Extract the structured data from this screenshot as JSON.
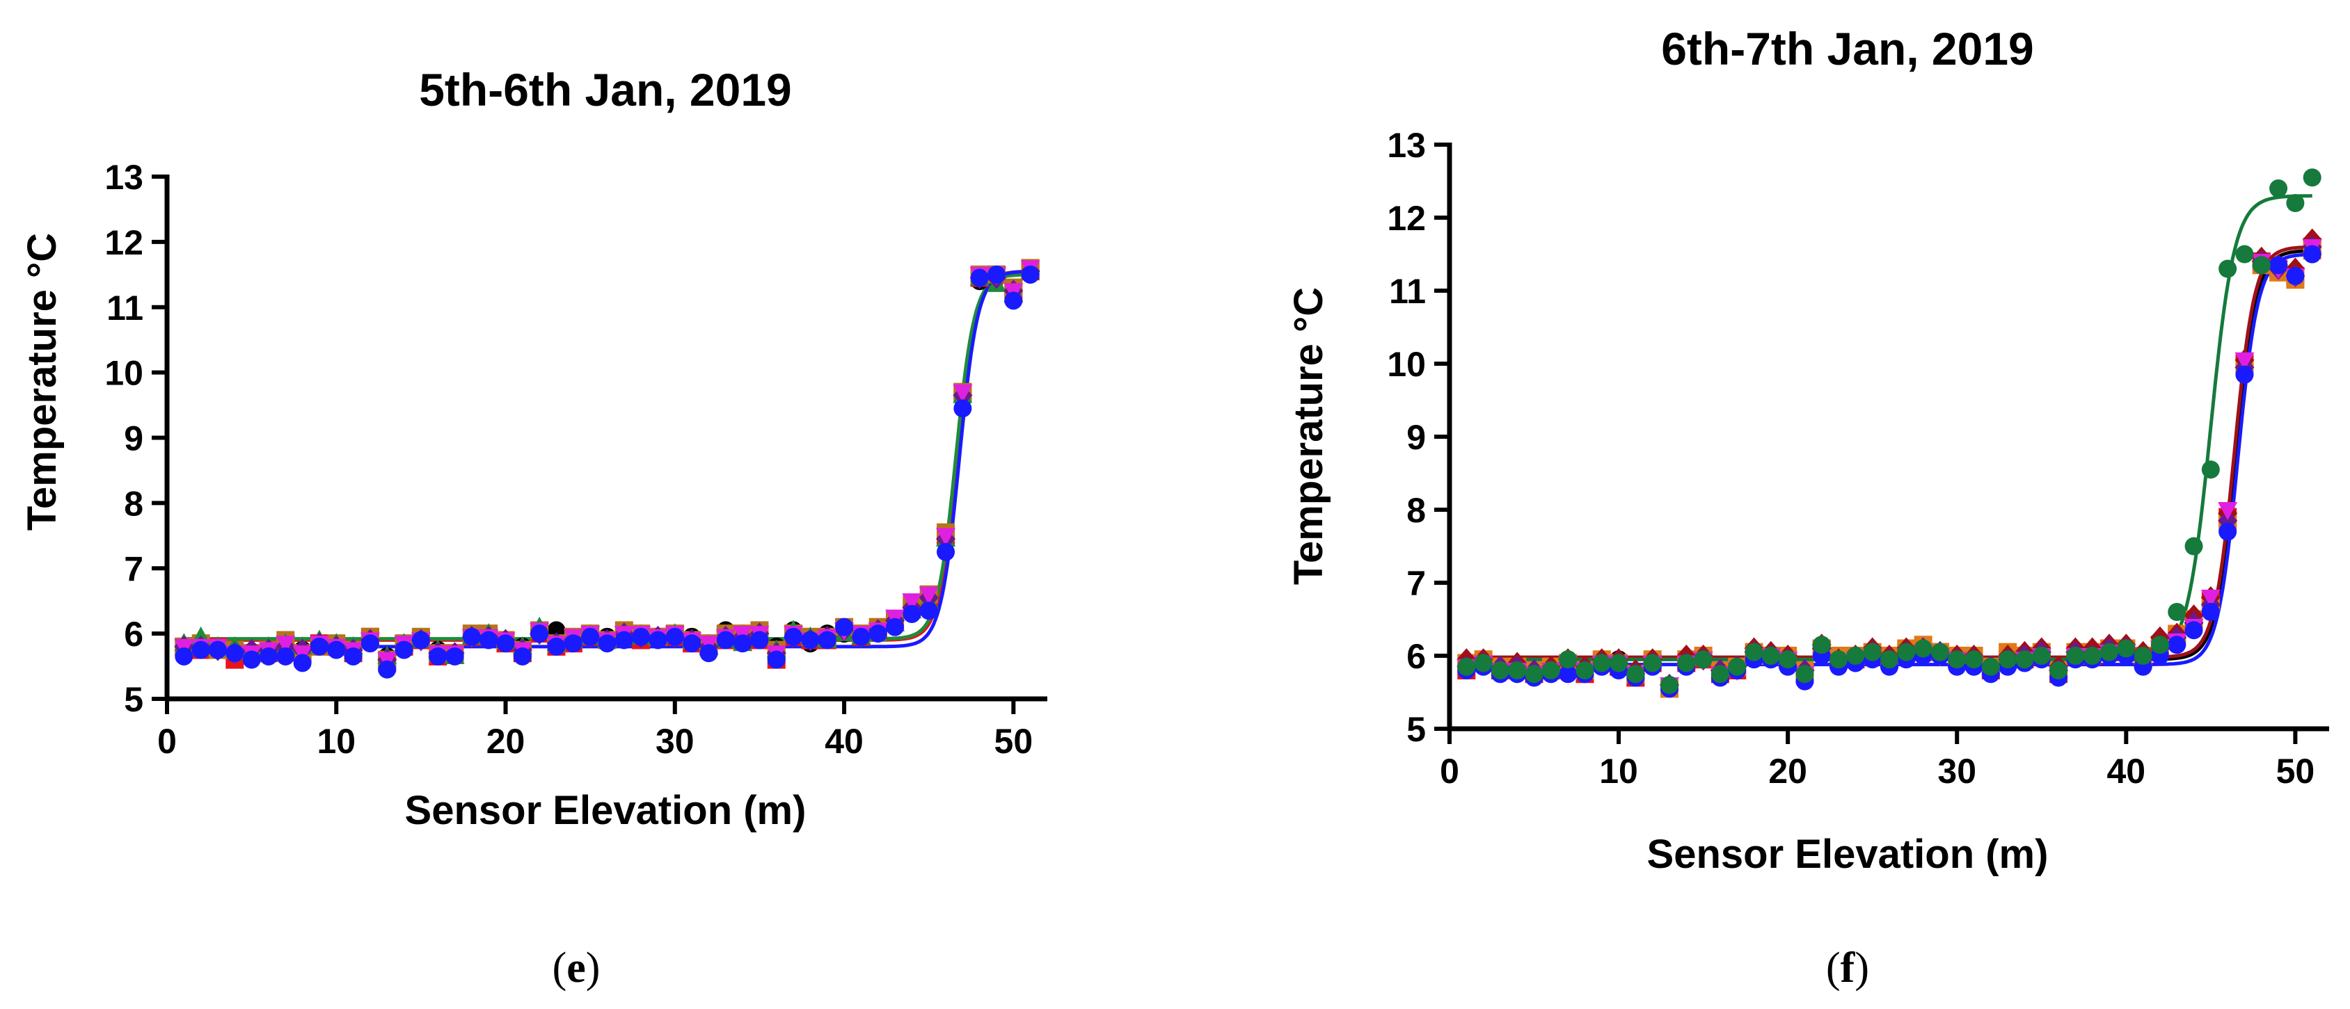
{
  "chart_data": [
    {
      "type": "scatter",
      "title": "5th-6th Jan, 2019",
      "xlabel": "Sensor Elevation (m)",
      "ylabel": "Temperature °C",
      "xlim": [
        0,
        52
      ],
      "ylim": [
        5,
        13
      ],
      "xticks": [
        0,
        10,
        20,
        30,
        40,
        50
      ],
      "yticks": [
        5,
        6,
        7,
        8,
        9,
        10,
        11,
        12,
        13
      ],
      "x": [
        1,
        2,
        3,
        4,
        5,
        6,
        7,
        8,
        9,
        10,
        11,
        12,
        13,
        14,
        15,
        16,
        17,
        18,
        19,
        20,
        21,
        22,
        23,
        24,
        25,
        26,
        27,
        28,
        29,
        30,
        31,
        32,
        33,
        34,
        35,
        36,
        37,
        38,
        39,
        40,
        41,
        42,
        43,
        44,
        45,
        46,
        47,
        48,
        49,
        50,
        51
      ],
      "series": [
        {
          "name": "black",
          "color": "#000000",
          "marker": "circle",
          "values": [
            5.8,
            5.85,
            5.8,
            5.75,
            5.7,
            5.75,
            5.85,
            5.75,
            5.85,
            5.8,
            5.75,
            5.9,
            5.65,
            5.85,
            5.95,
            5.75,
            5.7,
            5.95,
            5.95,
            5.9,
            5.8,
            6.05,
            6.05,
            5.95,
            6.0,
            5.95,
            6.0,
            6.0,
            5.95,
            6.0,
            5.95,
            5.85,
            6.05,
            6.0,
            5.95,
            5.8,
            6.05,
            5.85,
            6.0,
            6.0,
            5.95,
            6.05,
            6.2,
            6.4,
            6.55,
            7.4,
            9.6,
            11.4,
            11.45,
            11.2,
            11.5
          ]
        },
        {
          "name": "red",
          "color": "#e8141c",
          "marker": "square",
          "values": [
            5.8,
            5.75,
            5.8,
            5.6,
            5.7,
            5.7,
            5.8,
            5.7,
            5.85,
            5.8,
            5.7,
            5.95,
            5.55,
            5.8,
            5.9,
            5.65,
            5.7,
            5.95,
            5.95,
            5.85,
            5.7,
            6.0,
            5.8,
            5.85,
            5.95,
            5.9,
            5.95,
            5.9,
            5.95,
            5.95,
            5.85,
            5.8,
            5.9,
            5.95,
            5.9,
            5.6,
            5.95,
            5.9,
            5.9,
            6.05,
            5.95,
            6.05,
            6.2,
            6.4,
            6.5,
            7.5,
            9.7,
            11.45,
            11.5,
            11.2,
            11.55
          ]
        },
        {
          "name": "brown",
          "color": "#b8741a",
          "marker": "square",
          "values": [
            5.8,
            5.85,
            5.75,
            5.75,
            5.7,
            5.75,
            5.9,
            5.7,
            5.8,
            5.85,
            5.75,
            5.95,
            5.6,
            5.85,
            5.95,
            5.7,
            5.7,
            6.0,
            6.0,
            5.9,
            5.75,
            6.05,
            5.85,
            5.95,
            6.0,
            5.9,
            6.05,
            6.0,
            5.95,
            6.0,
            5.9,
            5.85,
            6.0,
            6.0,
            6.05,
            5.75,
            6.0,
            5.95,
            5.95,
            6.1,
            6.0,
            6.1,
            6.2,
            6.45,
            6.6,
            7.55,
            9.7,
            11.5,
            11.5,
            11.3,
            11.6
          ]
        },
        {
          "name": "green",
          "color": "#1e8c3a",
          "marker": "triangle",
          "values": [
            5.85,
            5.95,
            5.8,
            5.8,
            5.75,
            5.8,
            5.85,
            5.8,
            5.9,
            5.85,
            5.8,
            5.9,
            5.65,
            5.85,
            5.9,
            5.75,
            5.65,
            5.95,
            6.0,
            5.9,
            5.8,
            6.1,
            5.85,
            5.9,
            5.95,
            5.9,
            6.0,
            5.95,
            5.95,
            6.0,
            5.9,
            5.8,
            5.9,
            5.85,
            6.0,
            5.75,
            6.05,
            5.95,
            5.9,
            6.0,
            5.95,
            6.0,
            6.15,
            6.35,
            6.5,
            7.45,
            9.65,
            11.45,
            11.35,
            11.2,
            11.55
          ]
        },
        {
          "name": "purple",
          "color": "#6a1a8c",
          "marker": "diamond",
          "values": [
            5.8,
            5.8,
            5.75,
            5.7,
            5.75,
            5.75,
            5.8,
            5.75,
            5.85,
            5.8,
            5.75,
            5.9,
            5.6,
            5.8,
            5.9,
            5.7,
            5.7,
            5.95,
            5.95,
            5.9,
            5.75,
            6.0,
            5.85,
            5.9,
            5.95,
            5.9,
            6.0,
            5.95,
            5.95,
            5.95,
            5.9,
            5.8,
            5.95,
            5.95,
            6.0,
            5.7,
            5.95,
            5.9,
            5.95,
            6.05,
            5.95,
            6.05,
            6.2,
            6.4,
            6.55,
            7.45,
            9.65,
            11.45,
            11.45,
            11.25,
            11.55
          ]
        },
        {
          "name": "magenta",
          "color": "#e020e0",
          "marker": "triangle-down",
          "values": [
            5.8,
            5.8,
            5.8,
            5.7,
            5.7,
            5.75,
            5.85,
            5.7,
            5.85,
            5.8,
            5.75,
            5.9,
            5.6,
            5.85,
            5.9,
            5.7,
            5.7,
            5.95,
            5.95,
            5.9,
            5.75,
            6.05,
            5.85,
            5.95,
            6.0,
            5.9,
            6.0,
            6.0,
            5.95,
            6.0,
            5.9,
            5.85,
            5.95,
            6.0,
            6.0,
            5.7,
            6.0,
            5.9,
            5.95,
            6.05,
            6.0,
            6.05,
            6.25,
            6.5,
            6.6,
            7.5,
            9.7,
            11.5,
            11.5,
            11.25,
            11.6
          ]
        },
        {
          "name": "blue",
          "color": "#1a1aff",
          "marker": "circle",
          "values": [
            5.65,
            5.75,
            5.75,
            5.7,
            5.6,
            5.65,
            5.65,
            5.55,
            5.8,
            5.75,
            5.65,
            5.85,
            5.45,
            5.75,
            5.9,
            5.65,
            5.65,
            5.95,
            5.9,
            5.85,
            5.65,
            6.0,
            5.8,
            5.85,
            5.95,
            5.85,
            5.9,
            5.95,
            5.9,
            5.95,
            5.85,
            5.7,
            5.9,
            5.85,
            5.9,
            5.6,
            5.95,
            5.9,
            5.9,
            6.1,
            5.95,
            6.0,
            6.1,
            6.3,
            6.35,
            7.25,
            9.45,
            11.45,
            11.5,
            11.1,
            11.5
          ]
        }
      ],
      "fit_curves": [
        {
          "name": "red fit",
          "color": "#e8141c",
          "base": 5.9,
          "top": 11.55,
          "center": 46.7,
          "slope": 0.55
        },
        {
          "name": "green fit",
          "color": "#1e8c3a",
          "base": 5.92,
          "top": 11.5,
          "center": 46.6,
          "slope": 0.55
        },
        {
          "name": "blue fit",
          "color": "#1a1aff",
          "base": 5.8,
          "top": 11.55,
          "center": 46.8,
          "slope": 0.55
        }
      ],
      "panel_label": "e"
    },
    {
      "type": "scatter",
      "title": "6th-7th Jan, 2019",
      "xlabel": "Sensor Elevation (m)",
      "ylabel": "Temperature °C",
      "xlim": [
        0,
        52
      ],
      "ylim": [
        5,
        13
      ],
      "xticks": [
        0,
        10,
        20,
        30,
        40,
        50
      ],
      "yticks": [
        5,
        6,
        7,
        8,
        9,
        10,
        11,
        12,
        13
      ],
      "x": [
        1,
        2,
        3,
        4,
        5,
        6,
        7,
        8,
        9,
        10,
        11,
        12,
        13,
        14,
        15,
        16,
        17,
        18,
        19,
        20,
        21,
        22,
        23,
        24,
        25,
        26,
        27,
        28,
        29,
        30,
        31,
        32,
        33,
        34,
        35,
        36,
        37,
        38,
        39,
        40,
        41,
        42,
        43,
        44,
        45,
        46,
        47,
        48,
        49,
        50,
        51
      ],
      "series": [
        {
          "name": "black",
          "color": "#000000",
          "marker": "circle",
          "values": [
            5.9,
            5.9,
            5.85,
            5.85,
            5.8,
            5.85,
            5.95,
            5.8,
            5.9,
            5.95,
            5.75,
            5.9,
            5.6,
            5.95,
            5.95,
            5.8,
            5.85,
            6.05,
            6.0,
            5.95,
            5.75,
            6.1,
            5.95,
            6.0,
            6.05,
            5.95,
            6.05,
            6.1,
            6.05,
            5.95,
            5.95,
            5.85,
            5.95,
            5.95,
            6.05,
            5.8,
            6.05,
            6.05,
            6.1,
            6.1,
            5.95,
            6.1,
            6.25,
            6.45,
            6.7,
            7.85,
            9.9,
            11.35,
            11.25,
            11.2,
            11.5
          ]
        },
        {
          "name": "red",
          "color": "#e8141c",
          "marker": "square",
          "values": [
            5.8,
            5.9,
            5.8,
            5.8,
            5.75,
            5.8,
            5.9,
            5.75,
            5.9,
            5.85,
            5.7,
            5.9,
            5.55,
            5.9,
            5.95,
            5.75,
            5.8,
            6.0,
            6.0,
            5.95,
            5.75,
            6.1,
            5.95,
            5.95,
            6.0,
            5.95,
            6.05,
            6.05,
            6.05,
            5.95,
            5.95,
            5.8,
            5.95,
            5.95,
            6.0,
            5.75,
            6.0,
            6.0,
            6.05,
            6.1,
            5.95,
            6.15,
            6.25,
            6.5,
            6.75,
            7.9,
            10.0,
            11.4,
            11.3,
            11.2,
            11.6
          ]
        },
        {
          "name": "orange",
          "color": "#e07a18",
          "marker": "square",
          "values": [
            5.9,
            5.95,
            5.85,
            5.85,
            5.8,
            5.85,
            5.9,
            5.8,
            5.95,
            5.9,
            5.75,
            5.95,
            5.55,
            5.95,
            6.0,
            5.8,
            5.85,
            6.05,
            6.0,
            6.0,
            5.8,
            6.1,
            6.0,
            6.0,
            6.05,
            6.0,
            6.1,
            6.15,
            6.05,
            6.0,
            6.0,
            5.85,
            6.05,
            6.0,
            6.05,
            5.8,
            6.05,
            6.05,
            6.1,
            6.1,
            6.0,
            6.15,
            6.3,
            6.5,
            6.7,
            7.85,
            9.95,
            11.35,
            11.25,
            11.15,
            11.55
          ]
        },
        {
          "name": "dark-red",
          "color": "#a01018",
          "marker": "diamond",
          "values": [
            5.95,
            5.95,
            5.85,
            5.9,
            5.8,
            5.85,
            5.95,
            5.85,
            5.95,
            5.95,
            5.8,
            5.95,
            5.6,
            6.0,
            6.0,
            5.8,
            5.85,
            6.1,
            6.05,
            6.0,
            5.8,
            6.15,
            5.95,
            6.0,
            6.1,
            6.0,
            6.1,
            6.1,
            6.05,
            6.0,
            6.0,
            5.85,
            6.0,
            6.05,
            6.1,
            5.85,
            6.1,
            6.1,
            6.15,
            6.15,
            6.05,
            6.25,
            6.3,
            6.55,
            6.8,
            7.95,
            10.05,
            11.45,
            11.35,
            11.3,
            11.7
          ]
        },
        {
          "name": "purple",
          "color": "#6a1a8c",
          "marker": "diamond",
          "values": [
            5.85,
            5.9,
            5.85,
            5.85,
            5.8,
            5.8,
            5.9,
            5.8,
            5.9,
            5.9,
            5.75,
            5.9,
            5.6,
            5.9,
            5.95,
            5.8,
            5.85,
            6.05,
            6.0,
            5.95,
            5.8,
            6.1,
            5.9,
            5.95,
            6.05,
            5.95,
            6.05,
            6.1,
            6.05,
            5.95,
            5.95,
            5.85,
            5.95,
            6.0,
            6.05,
            5.8,
            6.05,
            6.0,
            6.1,
            6.1,
            5.95,
            6.1,
            6.25,
            6.45,
            6.7,
            7.85,
            9.95,
            11.4,
            11.3,
            11.2,
            11.6
          ]
        },
        {
          "name": "magenta",
          "color": "#e020e0",
          "marker": "triangle-down",
          "values": [
            5.85,
            5.9,
            5.8,
            5.8,
            5.75,
            5.8,
            5.9,
            5.8,
            5.9,
            5.9,
            5.75,
            5.9,
            5.6,
            5.9,
            5.95,
            5.75,
            5.8,
            6.0,
            6.0,
            5.95,
            5.75,
            6.05,
            5.9,
            5.95,
            6.0,
            5.9,
            6.0,
            6.05,
            6.0,
            5.95,
            5.9,
            5.8,
            5.9,
            5.95,
            6.0,
            5.75,
            6.0,
            6.0,
            6.05,
            6.05,
            5.95,
            6.1,
            6.2,
            6.4,
            6.8,
            8.0,
            10.05,
            11.4,
            11.3,
            11.2,
            11.6
          ]
        },
        {
          "name": "blue",
          "color": "#1a1aff",
          "marker": "circle",
          "values": [
            5.8,
            5.85,
            5.75,
            5.75,
            5.7,
            5.75,
            5.75,
            5.75,
            5.85,
            5.8,
            5.7,
            5.85,
            5.55,
            5.85,
            5.95,
            5.7,
            5.8,
            5.95,
            5.95,
            5.85,
            5.65,
            6.0,
            5.85,
            5.9,
            5.95,
            5.85,
            5.95,
            6.0,
            6.0,
            5.85,
            5.85,
            5.75,
            5.85,
            5.9,
            5.95,
            5.7,
            5.95,
            5.95,
            6.0,
            6.0,
            5.85,
            6.0,
            6.15,
            6.35,
            6.6,
            7.7,
            9.85,
            11.35,
            11.35,
            11.2,
            11.5
          ]
        },
        {
          "name": "green",
          "color": "#157a3c",
          "marker": "circle",
          "values": [
            5.85,
            5.9,
            5.8,
            5.8,
            5.75,
            5.8,
            5.95,
            5.8,
            5.9,
            5.9,
            5.75,
            5.9,
            5.6,
            5.9,
            5.95,
            5.75,
            5.85,
            6.05,
            6.0,
            5.95,
            5.75,
            6.15,
            5.95,
            6.0,
            6.05,
            5.95,
            6.05,
            6.1,
            6.05,
            5.95,
            5.95,
            5.85,
            5.95,
            5.95,
            6.0,
            5.8,
            6.0,
            6.0,
            6.05,
            6.1,
            6.0,
            6.15,
            6.6,
            7.5,
            8.55,
            11.3,
            11.5,
            11.35,
            12.4,
            12.2,
            12.55
          ]
        }
      ],
      "fit_curves": [
        {
          "name": "black fit",
          "color": "#000000",
          "base": 5.95,
          "top": 11.55,
          "center": 46.5,
          "slope": 0.6
        },
        {
          "name": "dark-red fit",
          "color": "#a01018",
          "base": 5.98,
          "top": 11.6,
          "center": 46.4,
          "slope": 0.6
        },
        {
          "name": "blue fit",
          "color": "#1a1aff",
          "base": 5.88,
          "top": 11.5,
          "center": 46.6,
          "slope": 0.6
        },
        {
          "name": "green fit",
          "color": "#157a3c",
          "base": 5.95,
          "top": 12.3,
          "center": 45.0,
          "slope": 0.7
        }
      ],
      "panel_label": "f"
    }
  ]
}
